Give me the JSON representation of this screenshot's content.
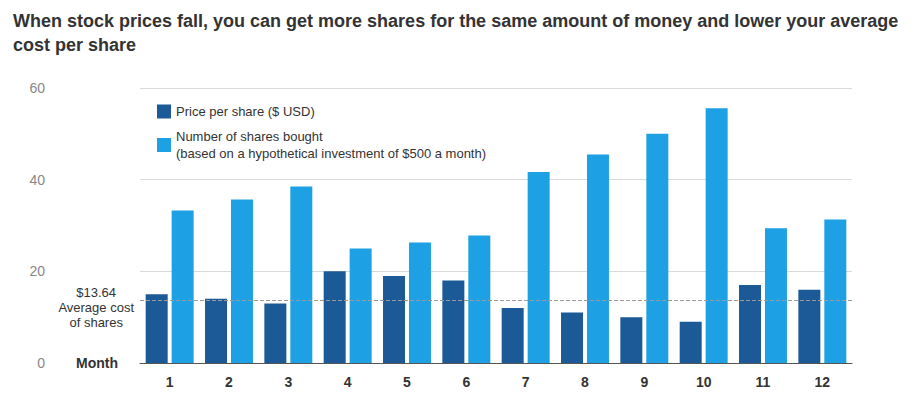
{
  "chart_data": {
    "type": "bar",
    "title": "When stock prices fall, you can get more shares for the same amount of money and lower your average cost per share",
    "x_label": "Month",
    "categories": [
      "1",
      "2",
      "3",
      "4",
      "5",
      "6",
      "7",
      "8",
      "9",
      "10",
      "11",
      "12"
    ],
    "series": [
      {
        "name": "Price per share ($ USD)",
        "color": "#1b5a96",
        "values": [
          15,
          14,
          13,
          20,
          19,
          18,
          12,
          11,
          10,
          9,
          17,
          16
        ]
      },
      {
        "name": "Number of shares bought\n(based on a hypothetical investment of $500 a month)",
        "color": "#1da1e4",
        "values": [
          33.3,
          35.7,
          38.5,
          25,
          26.3,
          27.8,
          41.7,
          45.5,
          50,
          55.6,
          29.4,
          31.3
        ]
      }
    ],
    "ylim": [
      0,
      60
    ],
    "yticks": [
      0,
      20,
      40,
      60
    ],
    "grid": true,
    "legend": "upper left",
    "reference_line": {
      "value": 13.64,
      "label": "$13.64",
      "text": [
        "Average cost",
        "of shares"
      ]
    }
  }
}
